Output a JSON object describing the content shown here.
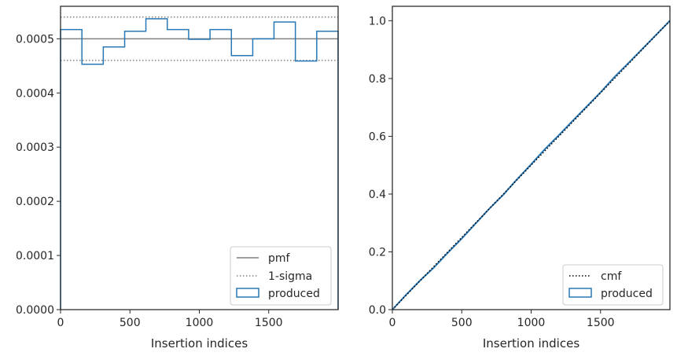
{
  "chart_data": [
    {
      "type": "line",
      "subtype": "step-histogram",
      "xlabel": "Insertion indices",
      "ylabel": "",
      "xlim": [
        0,
        2000
      ],
      "ylim": [
        0,
        0.00056
      ],
      "xticks": [
        0,
        500,
        1000,
        1500
      ],
      "xtick_labels": [
        "0",
        "500",
        "1000",
        "1500"
      ],
      "yticks": [
        0,
        0.0001,
        0.0002,
        0.0003,
        0.0004,
        0.0005
      ],
      "ytick_labels": [
        "0.0000",
        "0.0001",
        "0.0002",
        "0.0003",
        "0.0004",
        "0.0005"
      ],
      "legend_position": "lower-right",
      "grid": false,
      "pmf": {
        "name": "pmf",
        "value": 0.0005,
        "color": "#808080"
      },
      "sigma": {
        "name": "1-sigma",
        "lower": 0.00046,
        "upper": 0.00054,
        "color": "#808080"
      },
      "series": [
        {
          "name": "produced",
          "color": "#2878b5",
          "bin_edges": [
            0,
            154,
            308,
            462,
            615,
            769,
            923,
            1077,
            1231,
            1385,
            1538,
            1692,
            1846,
            2000
          ],
          "values": [
            0.000517,
            0.000453,
            0.000485,
            0.000514,
            0.000537,
            0.000517,
            0.000499,
            0.000517,
            0.000469,
            0.0005,
            0.000531,
            0.000459,
            0.000514
          ]
        }
      ]
    },
    {
      "type": "line",
      "xlabel": "Insertion indices",
      "ylabel": "",
      "xlim": [
        0,
        2000
      ],
      "ylim": [
        0,
        1.05
      ],
      "xticks": [
        0,
        500,
        1000,
        1500
      ],
      "xtick_labels": [
        "0",
        "500",
        "1000",
        "1500"
      ],
      "yticks": [
        0,
        0.2,
        0.4,
        0.6,
        0.8,
        1.0
      ],
      "ytick_labels": [
        "0.0",
        "0.2",
        "0.4",
        "0.6",
        "0.8",
        "1.0"
      ],
      "legend_position": "lower-right",
      "grid": false,
      "series": [
        {
          "name": "cmf",
          "color": "#000000",
          "style": "dotted",
          "x": [
            0,
            2000
          ],
          "y": [
            0,
            1.0
          ]
        },
        {
          "name": "produced",
          "color": "#2878b5",
          "style": "solid",
          "x": [
            0,
            100,
            200,
            300,
            400,
            500,
            600,
            700,
            800,
            900,
            1000,
            1100,
            1200,
            1300,
            1400,
            1500,
            1600,
            1700,
            1800,
            1900,
            2000
          ],
          "y": [
            0,
            0.052,
            0.101,
            0.146,
            0.197,
            0.246,
            0.298,
            0.35,
            0.398,
            0.452,
            0.503,
            0.556,
            0.604,
            0.654,
            0.703,
            0.752,
            0.805,
            0.853,
            0.902,
            0.951,
            1.0
          ]
        }
      ]
    }
  ]
}
